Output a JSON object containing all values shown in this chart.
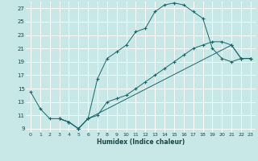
{
  "xlabel": "Humidex (Indice chaleur)",
  "bg_color": "#c8e8e8",
  "grid_color": "#ffffff",
  "line_color": "#1a6666",
  "xlim": [
    -0.5,
    23.5
  ],
  "ylim": [
    8.5,
    28.0
  ],
  "xticks": [
    0,
    1,
    2,
    3,
    4,
    5,
    6,
    7,
    8,
    9,
    10,
    11,
    12,
    13,
    14,
    15,
    16,
    17,
    18,
    19,
    20,
    21,
    22,
    23
  ],
  "yticks": [
    9,
    11,
    13,
    15,
    17,
    19,
    21,
    23,
    25,
    27
  ],
  "line1_x": [
    0,
    1,
    2,
    3,
    4,
    5,
    6,
    7,
    8,
    9,
    10,
    11,
    12,
    13,
    14,
    15,
    16,
    17,
    18,
    19,
    20,
    21,
    22,
    23
  ],
  "line1_y": [
    14.5,
    12.0,
    10.5,
    10.5,
    10.0,
    9.0,
    10.5,
    16.5,
    19.5,
    20.5,
    21.5,
    23.5,
    24.0,
    26.5,
    27.5,
    27.8,
    27.5,
    26.5,
    25.5,
    21.0,
    19.5,
    19.0,
    19.5,
    19.5
  ],
  "line2_x": [
    3,
    4,
    5,
    6,
    7,
    8,
    9,
    10,
    11,
    12,
    13,
    14,
    15,
    16,
    17,
    18,
    19,
    20,
    21,
    22,
    23
  ],
  "line2_y": [
    10.5,
    10.0,
    9.0,
    10.5,
    11.0,
    13.0,
    13.5,
    14.0,
    15.0,
    16.0,
    17.0,
    18.0,
    19.0,
    20.0,
    21.0,
    21.5,
    22.0,
    22.0,
    21.5,
    19.5,
    19.5
  ],
  "line3_x": [
    3,
    4,
    5,
    6,
    21,
    22,
    23
  ],
  "line3_y": [
    10.5,
    10.0,
    9.0,
    10.5,
    21.5,
    19.5,
    19.5
  ]
}
